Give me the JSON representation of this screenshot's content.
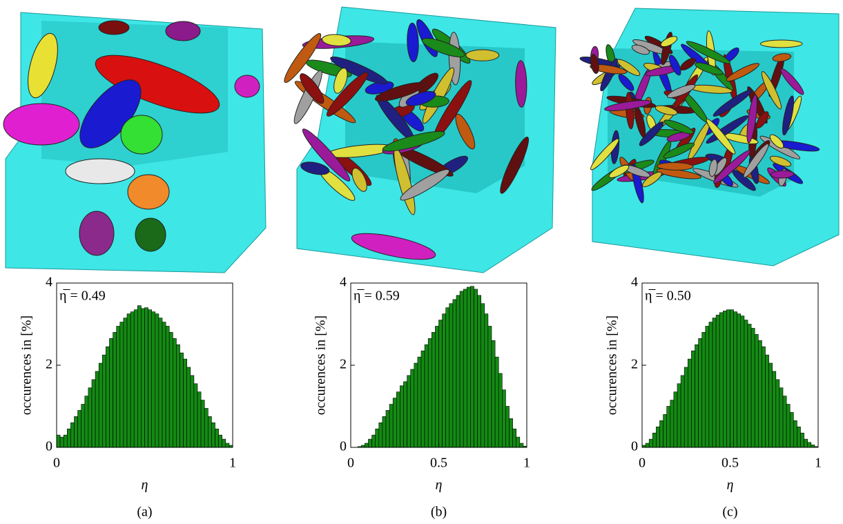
{
  "chart_data": [
    {
      "type": "histogram",
      "annotation": "η̅ = 0.49",
      "xlabel": "η",
      "ylabel": "occurences in [%]",
      "caption": "(a)",
      "bins": [
        0,
        0.02,
        0.04,
        0.06,
        0.08,
        0.1,
        0.12,
        0.14,
        0.16,
        0.18,
        0.2,
        0.22,
        0.24,
        0.26,
        0.28,
        0.3,
        0.32,
        0.34,
        0.36,
        0.38,
        0.4,
        0.42,
        0.44,
        0.46,
        0.48,
        0.5,
        0.52,
        0.54,
        0.56,
        0.58,
        0.6,
        0.62,
        0.64,
        0.66,
        0.68,
        0.7,
        0.72,
        0.74,
        0.76,
        0.78,
        0.8,
        0.82,
        0.84,
        0.86,
        0.88,
        0.9,
        0.92,
        0.94,
        0.96,
        0.98,
        1
      ],
      "values": [
        0.3,
        0.25,
        0.3,
        0.45,
        0.6,
        0.75,
        0.9,
        1.05,
        1.25,
        1.45,
        1.65,
        1.85,
        2.05,
        2.25,
        2.45,
        2.65,
        2.8,
        2.95,
        3.05,
        3.15,
        3.25,
        3.3,
        3.35,
        3.45,
        3.38,
        3.4,
        3.35,
        3.3,
        3.25,
        3.15,
        3.05,
        2.95,
        2.8,
        2.65,
        2.5,
        2.3,
        2.15,
        1.95,
        1.75,
        1.55,
        1.35,
        1.15,
        0.95,
        0.75,
        0.6,
        0.45,
        0.3,
        0.2,
        0.1,
        0.05
      ],
      "color": "#138a13",
      "xlim": [
        0,
        1
      ],
      "xticks": [
        0,
        1
      ],
      "ylim": [
        0,
        4
      ],
      "yticks": [
        0,
        2,
        4
      ]
    },
    {
      "type": "histogram",
      "annotation": "η̅ = 0.59",
      "xlabel": "η",
      "ylabel": "occurences in [%]",
      "caption": "(b)",
      "bins": [
        0,
        0.02,
        0.04,
        0.06,
        0.08,
        0.1,
        0.12,
        0.14,
        0.16,
        0.18,
        0.2,
        0.22,
        0.24,
        0.26,
        0.28,
        0.3,
        0.32,
        0.34,
        0.36,
        0.38,
        0.4,
        0.42,
        0.44,
        0.46,
        0.48,
        0.5,
        0.52,
        0.54,
        0.56,
        0.58,
        0.6,
        0.62,
        0.64,
        0.66,
        0.68,
        0.7,
        0.72,
        0.74,
        0.76,
        0.78,
        0.8,
        0.82,
        0.84,
        0.86,
        0.88,
        0.9,
        0.92,
        0.94,
        0.96,
        0.98,
        1
      ],
      "values": [
        0,
        0,
        0.02,
        0.05,
        0.1,
        0.2,
        0.3,
        0.45,
        0.6,
        0.75,
        0.9,
        1.05,
        1.2,
        1.35,
        1.5,
        1.6,
        1.75,
        1.9,
        2.05,
        2.2,
        2.35,
        2.5,
        2.65,
        2.8,
        2.95,
        3.1,
        3.25,
        3.4,
        3.5,
        3.6,
        3.7,
        3.8,
        3.85,
        3.9,
        3.92,
        3.85,
        3.7,
        3.5,
        3.25,
        2.95,
        2.6,
        2.2,
        1.8,
        1.4,
        1.0,
        0.7,
        0.45,
        0.25,
        0.1,
        0.03
      ],
      "color": "#138a13",
      "xlim": [
        0,
        1
      ],
      "xticks": [
        0,
        0.5,
        1
      ],
      "ylim": [
        0,
        4
      ],
      "yticks": [
        0,
        2,
        4
      ]
    },
    {
      "type": "histogram",
      "annotation": "η̅ = 0.50",
      "xlabel": "η",
      "ylabel": "occurences in [%]",
      "caption": "(c)",
      "bins": [
        0,
        0.02,
        0.04,
        0.06,
        0.08,
        0.1,
        0.12,
        0.14,
        0.16,
        0.18,
        0.2,
        0.22,
        0.24,
        0.26,
        0.28,
        0.3,
        0.32,
        0.34,
        0.36,
        0.38,
        0.4,
        0.42,
        0.44,
        0.46,
        0.48,
        0.5,
        0.52,
        0.54,
        0.56,
        0.58,
        0.6,
        0.62,
        0.64,
        0.66,
        0.68,
        0.7,
        0.72,
        0.74,
        0.76,
        0.78,
        0.8,
        0.82,
        0.84,
        0.86,
        0.88,
        0.9,
        0.92,
        0.94,
        0.96,
        0.98,
        1
      ],
      "values": [
        0.05,
        0.1,
        0.2,
        0.35,
        0.5,
        0.65,
        0.8,
        1.0,
        1.15,
        1.35,
        1.55,
        1.75,
        1.95,
        2.15,
        2.35,
        2.5,
        2.65,
        2.8,
        2.95,
        3.05,
        3.15,
        3.22,
        3.28,
        3.32,
        3.35,
        3.35,
        3.3,
        3.25,
        3.2,
        3.1,
        3.0,
        2.9,
        2.75,
        2.6,
        2.45,
        2.25,
        2.05,
        1.85,
        1.65,
        1.45,
        1.25,
        1.05,
        0.85,
        0.65,
        0.5,
        0.35,
        0.2,
        0.12,
        0.06,
        0.02
      ],
      "color": "#138a13",
      "xlim": [
        0,
        1
      ],
      "xticks": [
        0,
        0.5,
        1
      ],
      "ylim": [
        0,
        4
      ],
      "yticks": [
        0,
        2,
        4
      ]
    }
  ]
}
